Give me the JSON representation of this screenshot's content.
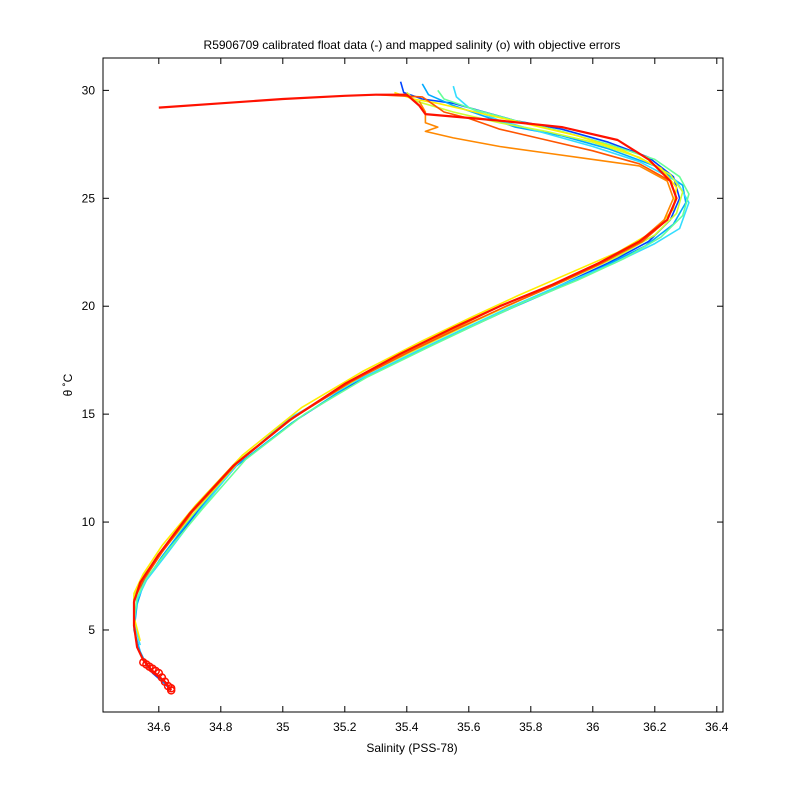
{
  "chart_data": {
    "type": "line",
    "title": "R5906709 calibrated float data (-) and mapped salinity (o) with objective errors",
    "xlabel": "Salinity (PSS-78)",
    "ylabel": "θ ˚C",
    "xlim": [
      34.42,
      36.42
    ],
    "ylim": [
      1.2,
      31.5
    ],
    "xticks": [
      "34.6",
      "34.8",
      "35",
      "35.2",
      "35.4",
      "35.6",
      "35.8",
      "36",
      "36.2",
      "36.4"
    ],
    "yticks": [
      "5",
      "10",
      "15",
      "20",
      "25",
      "30"
    ],
    "grid": false,
    "legend": "none",
    "series": [
      {
        "color": "#0044ff",
        "points": [
          [
            35.38,
            30.4
          ],
          [
            35.39,
            29.9
          ],
          [
            35.45,
            29.6
          ],
          [
            35.55,
            29.4
          ],
          [
            35.65,
            29.0
          ],
          [
            35.75,
            28.6
          ],
          [
            35.9,
            28.2
          ],
          [
            36.05,
            27.6
          ],
          [
            36.18,
            26.9
          ],
          [
            36.26,
            26.0
          ],
          [
            36.28,
            25.0
          ],
          [
            36.25,
            24.0
          ],
          [
            36.18,
            23.0
          ],
          [
            36.05,
            22.0
          ],
          [
            35.9,
            21.0
          ],
          [
            35.75,
            20.0
          ],
          [
            35.6,
            19.0
          ],
          [
            35.45,
            18.0
          ],
          [
            35.25,
            16.6
          ],
          [
            35.05,
            14.8
          ],
          [
            34.85,
            12.6
          ],
          [
            34.72,
            10.4
          ],
          [
            34.62,
            8.5
          ],
          [
            34.55,
            7.2
          ],
          [
            34.53,
            6.3
          ],
          [
            34.52,
            5.2
          ],
          [
            34.53,
            4.2
          ],
          [
            34.55,
            3.6
          ],
          [
            34.58,
            3.0
          ],
          [
            34.62,
            2.5
          ],
          [
            34.64,
            2.2
          ]
        ]
      },
      {
        "color": "#00aaff",
        "points": [
          [
            35.45,
            30.3
          ],
          [
            35.47,
            29.8
          ],
          [
            35.55,
            29.3
          ],
          [
            35.65,
            28.8
          ],
          [
            35.75,
            28.3
          ],
          [
            35.9,
            27.9
          ],
          [
            36.05,
            27.3
          ],
          [
            36.2,
            26.5
          ],
          [
            36.29,
            25.6
          ],
          [
            36.3,
            24.8
          ],
          [
            36.26,
            23.8
          ],
          [
            36.17,
            22.8
          ],
          [
            36.03,
            21.8
          ],
          [
            35.88,
            20.8
          ],
          [
            35.72,
            19.8
          ],
          [
            35.58,
            18.9
          ],
          [
            35.42,
            17.8
          ],
          [
            35.22,
            16.4
          ],
          [
            35.03,
            14.6
          ],
          [
            34.84,
            12.5
          ],
          [
            34.71,
            10.3
          ],
          [
            34.61,
            8.4
          ],
          [
            34.55,
            7.1
          ],
          [
            34.53,
            6.2
          ],
          [
            34.52,
            5.0
          ],
          [
            34.54,
            4.0
          ],
          [
            34.56,
            3.4
          ],
          [
            34.6,
            2.8
          ],
          [
            34.63,
            2.4
          ]
        ]
      },
      {
        "color": "#33ddff",
        "points": [
          [
            35.55,
            30.2
          ],
          [
            35.56,
            29.7
          ],
          [
            35.6,
            29.2
          ],
          [
            35.7,
            28.6
          ],
          [
            35.85,
            28.0
          ],
          [
            36.0,
            27.4
          ],
          [
            36.15,
            26.7
          ],
          [
            36.27,
            25.8
          ],
          [
            36.31,
            24.8
          ],
          [
            36.28,
            23.6
          ],
          [
            36.2,
            22.9
          ],
          [
            36.07,
            22.0
          ],
          [
            35.9,
            21.0
          ],
          [
            35.74,
            20.0
          ],
          [
            35.59,
            19.0
          ],
          [
            35.43,
            17.9
          ],
          [
            35.23,
            16.5
          ],
          [
            35.02,
            14.8
          ],
          [
            34.86,
            12.8
          ],
          [
            34.73,
            10.5
          ],
          [
            34.63,
            8.6
          ],
          [
            34.56,
            7.3
          ],
          [
            34.53,
            6.4
          ],
          [
            34.52,
            5.3
          ],
          [
            34.54,
            4.3
          ]
        ]
      },
      {
        "color": "#66ff99",
        "points": [
          [
            35.5,
            30.0
          ],
          [
            35.52,
            29.6
          ],
          [
            35.62,
            29.1
          ],
          [
            35.75,
            28.6
          ],
          [
            35.9,
            28.1
          ],
          [
            36.05,
            27.5
          ],
          [
            36.2,
            26.8
          ],
          [
            36.28,
            26.0
          ],
          [
            36.31,
            25.2
          ],
          [
            36.29,
            24.2
          ],
          [
            36.22,
            23.2
          ],
          [
            36.1,
            22.2
          ],
          [
            35.95,
            21.2
          ],
          [
            35.78,
            20.2
          ],
          [
            35.63,
            19.2
          ],
          [
            35.47,
            18.1
          ],
          [
            35.27,
            16.7
          ],
          [
            35.07,
            15.0
          ],
          [
            34.88,
            12.9
          ],
          [
            34.74,
            10.6
          ],
          [
            34.63,
            8.7
          ],
          [
            34.56,
            7.4
          ],
          [
            34.53,
            6.5
          ],
          [
            34.52,
            5.4
          ]
        ]
      },
      {
        "color": "#ccff33",
        "points": [
          [
            35.4,
            29.9
          ],
          [
            35.43,
            29.5
          ],
          [
            35.55,
            29.0
          ],
          [
            35.7,
            28.5
          ],
          [
            35.85,
            28.1
          ],
          [
            36.0,
            27.6
          ],
          [
            36.15,
            26.9
          ],
          [
            36.25,
            26.1
          ],
          [
            36.29,
            25.3
          ],
          [
            36.27,
            24.3
          ],
          [
            36.2,
            23.3
          ],
          [
            36.08,
            22.3
          ],
          [
            35.93,
            21.3
          ],
          [
            35.77,
            20.3
          ],
          [
            35.62,
            19.3
          ],
          [
            35.46,
            18.2
          ],
          [
            35.26,
            16.8
          ],
          [
            35.06,
            15.1
          ],
          [
            34.87,
            13.0
          ],
          [
            34.73,
            10.7
          ],
          [
            34.62,
            8.8
          ],
          [
            34.55,
            7.5
          ],
          [
            34.52,
            6.6
          ],
          [
            34.52,
            5.5
          ]
        ]
      },
      {
        "color": "#ffee00",
        "points": [
          [
            35.36,
            29.9
          ],
          [
            35.42,
            29.6
          ],
          [
            35.5,
            29.4
          ],
          [
            35.65,
            28.9
          ],
          [
            35.8,
            28.4
          ],
          [
            35.95,
            27.9
          ],
          [
            36.1,
            27.2
          ],
          [
            36.22,
            26.4
          ],
          [
            36.27,
            25.5
          ],
          [
            36.26,
            24.5
          ],
          [
            36.2,
            23.5
          ],
          [
            36.08,
            22.5
          ],
          [
            35.92,
            21.5
          ],
          [
            35.76,
            20.5
          ],
          [
            35.61,
            19.5
          ],
          [
            35.45,
            18.4
          ],
          [
            35.26,
            17.0
          ],
          [
            35.06,
            15.3
          ],
          [
            34.87,
            13.1
          ],
          [
            34.72,
            10.8
          ],
          [
            34.61,
            8.9
          ],
          [
            34.55,
            7.6
          ],
          [
            34.52,
            6.7
          ],
          [
            34.52,
            5.6
          ],
          [
            34.54,
            4.5
          ]
        ]
      },
      {
        "color": "#ff8800",
        "points": [
          [
            35.44,
            29.5
          ],
          [
            35.46,
            29.0
          ],
          [
            35.46,
            28.5
          ],
          [
            35.5,
            28.3
          ],
          [
            35.46,
            28.1
          ],
          [
            35.55,
            27.8
          ],
          [
            35.7,
            27.4
          ],
          [
            35.85,
            27.1
          ],
          [
            36.0,
            26.8
          ],
          [
            36.15,
            26.5
          ],
          [
            36.24,
            25.8
          ],
          [
            36.26,
            25.0
          ],
          [
            36.23,
            24.0
          ],
          [
            36.15,
            23.0
          ],
          [
            36.02,
            22.0
          ],
          [
            35.87,
            21.0
          ],
          [
            35.7,
            20.0
          ],
          [
            35.56,
            19.0
          ],
          [
            35.4,
            17.9
          ],
          [
            35.22,
            16.5
          ],
          [
            35.03,
            14.8
          ],
          [
            34.85,
            12.7
          ],
          [
            34.71,
            10.5
          ],
          [
            34.61,
            8.6
          ],
          [
            34.55,
            7.3
          ],
          [
            34.52,
            6.4
          ]
        ]
      },
      {
        "color": "#ff5500",
        "points": [
          [
            35.3,
            29.8
          ],
          [
            35.45,
            29.7
          ],
          [
            35.48,
            29.4
          ],
          [
            35.52,
            29.0
          ],
          [
            35.6,
            28.7
          ],
          [
            35.7,
            28.2
          ],
          [
            35.85,
            27.7
          ],
          [
            36.0,
            27.2
          ],
          [
            36.15,
            26.6
          ],
          [
            36.25,
            25.8
          ],
          [
            36.27,
            25.0
          ],
          [
            36.24,
            24.0
          ],
          [
            36.16,
            23.0
          ],
          [
            36.03,
            22.0
          ],
          [
            35.88,
            21.0
          ],
          [
            35.72,
            20.0
          ],
          [
            35.57,
            19.0
          ],
          [
            35.41,
            17.9
          ],
          [
            35.22,
            16.5
          ],
          [
            35.03,
            14.8
          ],
          [
            34.85,
            12.7
          ],
          [
            34.71,
            10.5
          ],
          [
            34.61,
            8.6
          ],
          [
            34.55,
            7.3
          ],
          [
            34.52,
            6.4
          ],
          [
            34.52,
            5.3
          ]
        ]
      },
      {
        "color": "#ff1100",
        "points": [
          [
            34.6,
            29.2
          ],
          [
            34.8,
            29.4
          ],
          [
            35.0,
            29.6
          ],
          [
            35.2,
            29.75
          ],
          [
            35.3,
            29.8
          ],
          [
            35.4,
            29.8
          ],
          [
            35.44,
            29.3
          ],
          [
            35.46,
            28.9
          ],
          [
            35.7,
            28.6
          ],
          [
            35.9,
            28.3
          ],
          [
            36.08,
            27.7
          ],
          [
            36.18,
            26.8
          ],
          [
            36.25,
            25.8
          ],
          [
            36.27,
            25.0
          ],
          [
            36.24,
            24.0
          ],
          [
            36.15,
            23.0
          ],
          [
            36.02,
            22.0
          ],
          [
            35.87,
            21.0
          ],
          [
            35.7,
            20.0
          ],
          [
            35.55,
            19.0
          ],
          [
            35.38,
            17.8
          ],
          [
            35.2,
            16.4
          ],
          [
            35.02,
            14.7
          ],
          [
            34.84,
            12.6
          ],
          [
            34.7,
            10.4
          ],
          [
            34.6,
            8.5
          ],
          [
            34.54,
            7.2
          ],
          [
            34.52,
            6.3
          ],
          [
            34.52,
            5.2
          ],
          [
            34.53,
            4.2
          ],
          [
            34.55,
            3.6
          ],
          [
            34.58,
            3.1
          ],
          [
            34.62,
            2.6
          ],
          [
            34.64,
            2.2
          ]
        ]
      }
    ],
    "mapped_points": {
      "color": "#ff1100",
      "points": [
        [
          34.55,
          3.5
        ],
        [
          34.56,
          3.4
        ],
        [
          34.57,
          3.3
        ],
        [
          34.58,
          3.2
        ],
        [
          34.59,
          3.1
        ],
        [
          34.6,
          3.0
        ],
        [
          34.61,
          2.8
        ],
        [
          34.62,
          2.6
        ],
        [
          34.63,
          2.4
        ],
        [
          34.64,
          2.3
        ],
        [
          34.64,
          2.2
        ]
      ]
    }
  }
}
